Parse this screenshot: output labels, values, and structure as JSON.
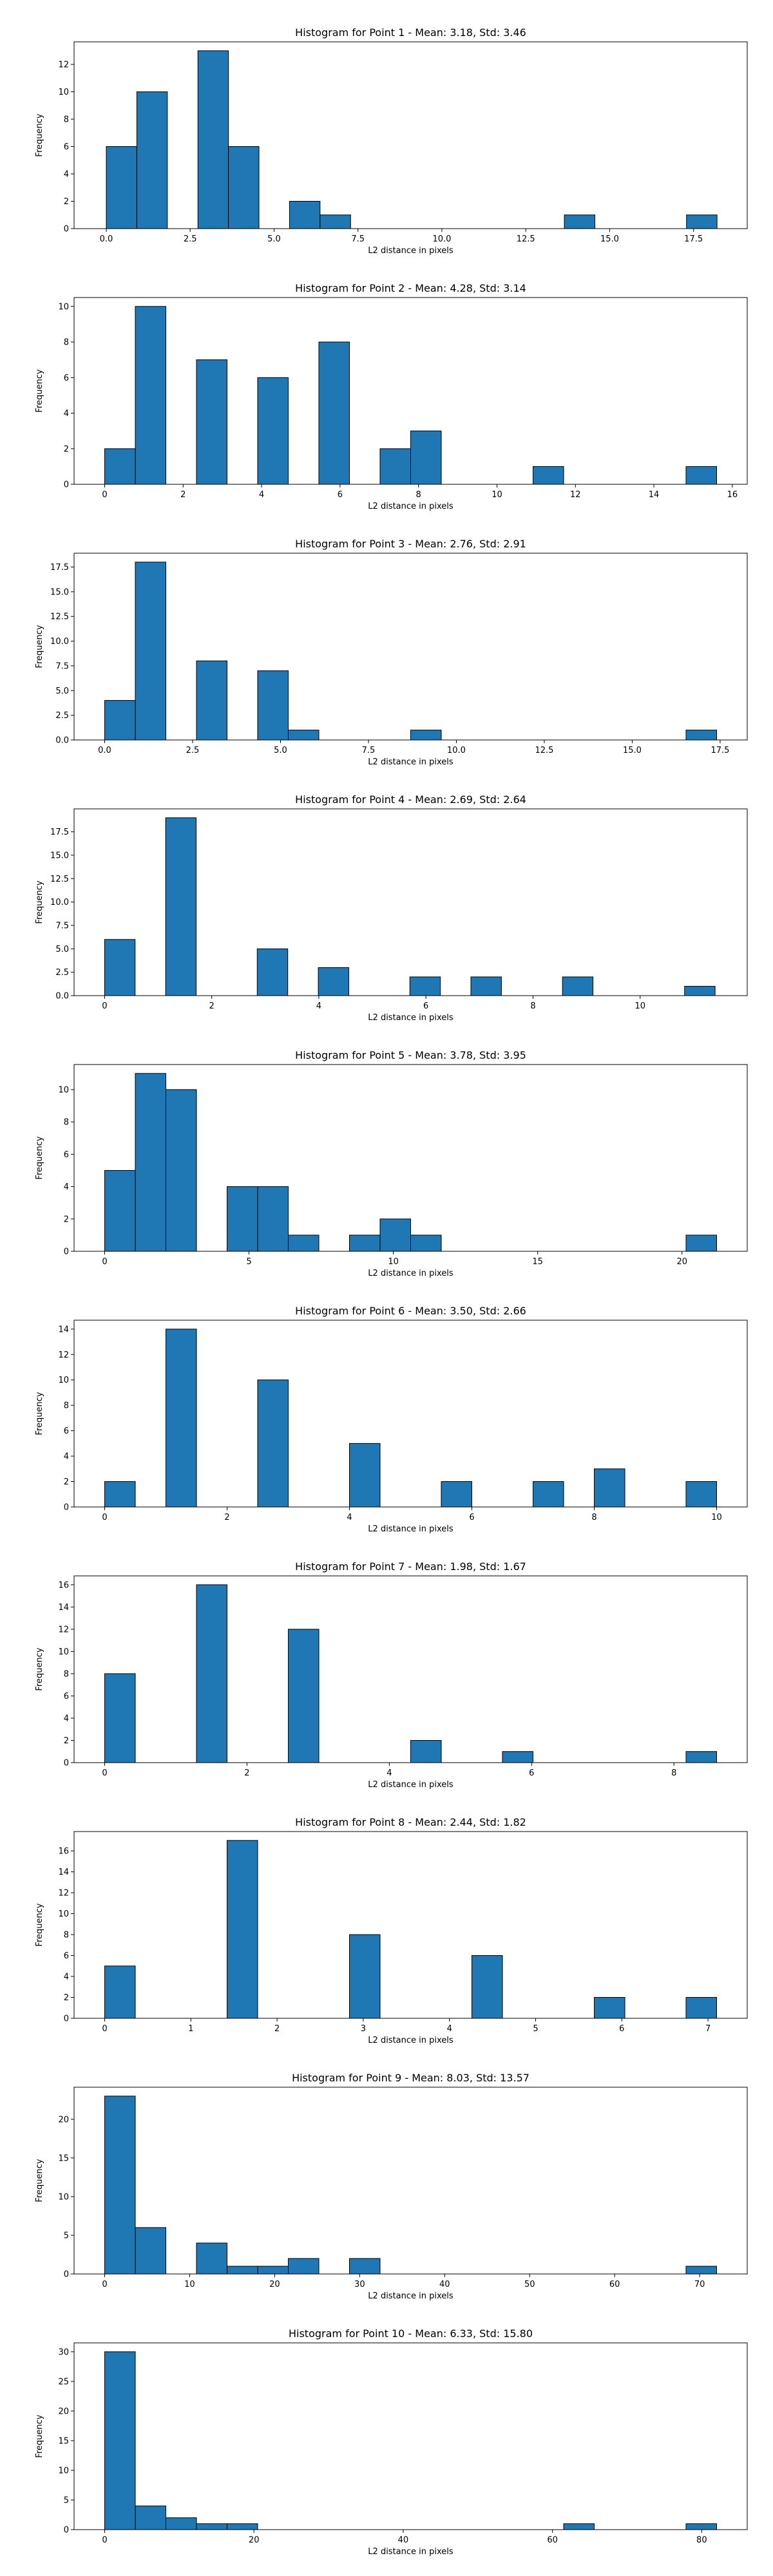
{
  "figure": {
    "background": "#ffffff"
  },
  "style": {
    "bar_color": "#1f77b4",
    "edge_color": "#000000"
  },
  "chart_data": [
    {
      "type": "bar",
      "title": "Histogram for Point 1 - Mean: 3.18, Std: 3.46",
      "xlabel": "L2 distance in pixels",
      "ylabel": "Frequency",
      "xlim": [
        -0.96,
        19.1
      ],
      "ylim": [
        0,
        13.65
      ],
      "xticks": [
        0,
        2.5,
        5,
        7.5,
        10,
        12.5,
        15,
        17.5
      ],
      "xtick_labels": [
        "0.0",
        "2.5",
        "5.0",
        "7.5",
        "10.0",
        "12.5",
        "15.0",
        "17.5"
      ],
      "yticks": [
        0,
        2,
        4,
        6,
        8,
        10,
        12
      ],
      "ytick_labels": [
        "0",
        "2",
        "4",
        "6",
        "8",
        "10",
        "12"
      ],
      "bin_edges": [
        0,
        0.91,
        1.82,
        2.73,
        3.64,
        4.55,
        5.46,
        6.37,
        7.28,
        8.19,
        9.1,
        10.01,
        10.92,
        11.83,
        12.74,
        13.65,
        14.56,
        15.47,
        16.38,
        17.29,
        18.2
      ],
      "counts": [
        6,
        10,
        0,
        13,
        6,
        0,
        2,
        1,
        0,
        0,
        0,
        0,
        0,
        0,
        0,
        1,
        0,
        0,
        0,
        1
      ]
    },
    {
      "type": "bar",
      "title": "Histogram for Point 2 - Mean: 4.28, Std: 3.14",
      "xlabel": "L2 distance in pixels",
      "ylabel": "Frequency",
      "xlim": [
        -0.78,
        16.38
      ],
      "ylim": [
        0,
        10.5
      ],
      "xticks": [
        0,
        2,
        4,
        6,
        8,
        10,
        12,
        14,
        16
      ],
      "xtick_labels": [
        "0",
        "2",
        "4",
        "6",
        "8",
        "10",
        "12",
        "14",
        "16"
      ],
      "yticks": [
        0,
        2,
        4,
        6,
        8,
        10
      ],
      "ytick_labels": [
        "0",
        "2",
        "4",
        "6",
        "8",
        "10"
      ],
      "bin_edges": [
        0,
        0.78,
        1.56,
        2.34,
        3.12,
        3.9,
        4.68,
        5.46,
        6.24,
        7.02,
        7.8,
        8.58,
        9.36,
        10.14,
        10.92,
        11.7,
        12.48,
        13.26,
        14.04,
        14.82,
        15.6
      ],
      "counts": [
        2,
        10,
        0,
        7,
        0,
        6,
        0,
        8,
        0,
        2,
        3,
        0,
        0,
        0,
        1,
        0,
        0,
        0,
        0,
        1
      ]
    },
    {
      "type": "bar",
      "title": "Histogram for Point 3 - Mean: 2.76, Std: 2.91",
      "xlabel": "L2 distance in pixels",
      "ylabel": "Frequency",
      "xlim": [
        -0.87,
        18.27
      ],
      "ylim": [
        0,
        18.9
      ],
      "xticks": [
        0,
        2.5,
        5,
        7.5,
        10,
        12.5,
        15,
        17.5
      ],
      "xtick_labels": [
        "0.0",
        "2.5",
        "5.0",
        "7.5",
        "10.0",
        "12.5",
        "15.0",
        "17.5"
      ],
      "yticks": [
        0,
        2.5,
        5,
        7.5,
        10,
        12.5,
        15,
        17.5
      ],
      "ytick_labels": [
        "0.0",
        "2.5",
        "5.0",
        "7.5",
        "10.0",
        "12.5",
        "15.0",
        "17.5"
      ],
      "bin_edges": [
        0,
        0.87,
        1.74,
        2.61,
        3.48,
        4.35,
        5.22,
        6.09,
        6.96,
        7.83,
        8.7,
        9.57,
        10.44,
        11.31,
        12.18,
        13.05,
        13.92,
        14.79,
        15.66,
        16.53,
        17.4
      ],
      "counts": [
        4,
        18,
        0,
        8,
        0,
        7,
        1,
        0,
        0,
        0,
        1,
        0,
        0,
        0,
        0,
        0,
        0,
        0,
        0,
        1
      ]
    },
    {
      "type": "bar",
      "title": "Histogram for Point 4 - Mean: 2.69, Std: 2.64",
      "xlabel": "L2 distance in pixels",
      "ylabel": "Frequency",
      "xlim": [
        -0.57,
        12.0
      ],
      "ylim": [
        0,
        19.95
      ],
      "xticks": [
        0,
        2,
        4,
        6,
        8,
        10
      ],
      "xtick_labels": [
        "0",
        "2",
        "4",
        "6",
        "8",
        "10"
      ],
      "yticks": [
        0,
        2.5,
        5,
        7.5,
        10,
        12.5,
        15,
        17.5
      ],
      "ytick_labels": [
        "0.0",
        "2.5",
        "5.0",
        "7.5",
        "10.0",
        "12.5",
        "15.0",
        "17.5"
      ],
      "bin_edges": [
        0,
        0.57,
        1.14,
        1.71,
        2.28,
        2.85,
        3.42,
        3.99,
        4.56,
        5.13,
        5.7,
        6.27,
        6.84,
        7.41,
        7.98,
        8.55,
        9.12,
        9.69,
        10.26,
        10.83,
        11.4
      ],
      "counts": [
        6,
        0,
        19,
        0,
        0,
        5,
        0,
        3,
        0,
        0,
        2,
        0,
        2,
        0,
        0,
        2,
        0,
        0,
        0,
        1
      ]
    },
    {
      "type": "bar",
      "title": "Histogram for Point 5 - Mean: 3.78, Std: 3.95",
      "xlabel": "L2 distance in pixels",
      "ylabel": "Frequency",
      "xlim": [
        -1.06,
        22.26
      ],
      "ylim": [
        0,
        11.55
      ],
      "xticks": [
        0,
        5,
        10,
        15,
        20
      ],
      "xtick_labels": [
        "0",
        "5",
        "10",
        "15",
        "20"
      ],
      "yticks": [
        0,
        2,
        4,
        6,
        8,
        10
      ],
      "ytick_labels": [
        "0",
        "2",
        "4",
        "6",
        "8",
        "10"
      ],
      "bin_edges": [
        0,
        1.06,
        2.12,
        3.18,
        4.24,
        5.3,
        6.36,
        7.42,
        8.48,
        9.54,
        10.6,
        11.66,
        12.72,
        13.78,
        14.84,
        15.9,
        16.96,
        18.02,
        19.08,
        20.14,
        21.2
      ],
      "counts": [
        5,
        11,
        10,
        0,
        4,
        4,
        1,
        0,
        1,
        2,
        1,
        0,
        0,
        0,
        0,
        0,
        0,
        0,
        0,
        1
      ]
    },
    {
      "type": "bar",
      "title": "Histogram for Point 6 - Mean: 3.50, Std: 2.66",
      "xlabel": "L2 distance in pixels",
      "ylabel": "Frequency",
      "xlim": [
        -0.5,
        10.5
      ],
      "ylim": [
        0,
        14.7
      ],
      "xticks": [
        0,
        2,
        4,
        6,
        8,
        10
      ],
      "xtick_labels": [
        "0",
        "2",
        "4",
        "6",
        "8",
        "10"
      ],
      "yticks": [
        0,
        2,
        4,
        6,
        8,
        10,
        12,
        14
      ],
      "ytick_labels": [
        "0",
        "2",
        "4",
        "6",
        "8",
        "10",
        "12",
        "14"
      ],
      "bin_edges": [
        0,
        0.5,
        1,
        1.5,
        2,
        2.5,
        3,
        3.5,
        4,
        4.5,
        5,
        5.5,
        6,
        6.5,
        7,
        7.5,
        8,
        8.5,
        9,
        9.5,
        10
      ],
      "counts": [
        2,
        0,
        14,
        0,
        0,
        10,
        0,
        0,
        5,
        0,
        0,
        2,
        0,
        0,
        2,
        0,
        3,
        0,
        0,
        2
      ]
    },
    {
      "type": "bar",
      "title": "Histogram for Point 7 - Mean: 1.98, Std: 1.67",
      "xlabel": "L2 distance in pixels",
      "ylabel": "Frequency",
      "xlim": [
        -0.43,
        9.03
      ],
      "ylim": [
        0,
        16.8
      ],
      "xticks": [
        0,
        2,
        4,
        6,
        8
      ],
      "xtick_labels": [
        "0",
        "2",
        "4",
        "6",
        "8"
      ],
      "yticks": [
        0,
        2,
        4,
        6,
        8,
        10,
        12,
        14,
        16
      ],
      "ytick_labels": [
        "0",
        "2",
        "4",
        "6",
        "8",
        "10",
        "12",
        "14",
        "16"
      ],
      "bin_edges": [
        0,
        0.43,
        0.86,
        1.29,
        1.72,
        2.15,
        2.58,
        3.01,
        3.44,
        3.87,
        4.3,
        4.73,
        5.16,
        5.59,
        6.02,
        6.45,
        6.88,
        7.31,
        7.74,
        8.17,
        8.6
      ],
      "counts": [
        8,
        0,
        0,
        16,
        0,
        0,
        12,
        0,
        0,
        0,
        2,
        0,
        0,
        1,
        0,
        0,
        0,
        0,
        0,
        1
      ]
    },
    {
      "type": "bar",
      "title": "Histogram for Point 8 - Mean: 2.44, Std: 1.82",
      "xlabel": "L2 distance in pixels",
      "ylabel": "Frequency",
      "xlim": [
        -0.355,
        7.455
      ],
      "ylim": [
        0,
        17.85
      ],
      "xticks": [
        0,
        1,
        2,
        3,
        4,
        5,
        6,
        7
      ],
      "xtick_labels": [
        "0",
        "1",
        "2",
        "3",
        "4",
        "5",
        "6",
        "7"
      ],
      "yticks": [
        0,
        2,
        4,
        6,
        8,
        10,
        12,
        14,
        16
      ],
      "ytick_labels": [
        "0",
        "2",
        "4",
        "6",
        "8",
        "10",
        "12",
        "14",
        "16"
      ],
      "bin_edges": [
        0,
        0.355,
        0.71,
        1.065,
        1.42,
        1.775,
        2.13,
        2.485,
        2.84,
        3.195,
        3.55,
        3.905,
        4.26,
        4.615,
        4.97,
        5.325,
        5.68,
        6.035,
        6.39,
        6.745,
        7.1
      ],
      "counts": [
        5,
        0,
        0,
        0,
        17,
        0,
        0,
        0,
        8,
        0,
        0,
        0,
        6,
        0,
        0,
        0,
        2,
        0,
        0,
        2
      ]
    },
    {
      "type": "bar",
      "title": "Histogram for Point 9 - Mean: 8.03, Std: 13.57",
      "xlabel": "L2 distance in pixels",
      "ylabel": "Frequency",
      "xlim": [
        -3.6,
        75.6
      ],
      "ylim": [
        0,
        24.15
      ],
      "xticks": [
        0,
        10,
        20,
        30,
        40,
        50,
        60,
        70
      ],
      "xtick_labels": [
        "0",
        "10",
        "20",
        "30",
        "40",
        "50",
        "60",
        "70"
      ],
      "yticks": [
        0,
        5,
        10,
        15,
        20
      ],
      "ytick_labels": [
        "0",
        "5",
        "10",
        "15",
        "20"
      ],
      "bin_edges": [
        0,
        3.6,
        7.2,
        10.8,
        14.4,
        18,
        21.6,
        25.2,
        28.8,
        32.4,
        36,
        39.6,
        43.2,
        46.8,
        50.4,
        54,
        57.6,
        61.2,
        64.8,
        68.4,
        72
      ],
      "counts": [
        23,
        6,
        0,
        4,
        1,
        1,
        2,
        0,
        2,
        0,
        0,
        0,
        0,
        0,
        0,
        0,
        0,
        0,
        0,
        1
      ]
    },
    {
      "type": "bar",
      "title": "Histogram for Point 10 - Mean: 6.33, Std: 15.80",
      "xlabel": "L2 distance in pixels",
      "ylabel": "Frequency",
      "xlim": [
        -4.1,
        86.1
      ],
      "ylim": [
        0,
        31.5
      ],
      "xticks": [
        0,
        20,
        40,
        60,
        80
      ],
      "xtick_labels": [
        "0",
        "20",
        "40",
        "60",
        "80"
      ],
      "yticks": [
        0,
        5,
        10,
        15,
        20,
        25,
        30
      ],
      "ytick_labels": [
        "0",
        "5",
        "10",
        "15",
        "20",
        "25",
        "30"
      ],
      "bin_edges": [
        0,
        4.1,
        8.2,
        12.3,
        16.4,
        20.5,
        24.6,
        28.7,
        32.8,
        36.9,
        41,
        45.1,
        49.2,
        53.3,
        57.4,
        61.5,
        65.6,
        69.7,
        73.8,
        77.9,
        82
      ],
      "counts": [
        30,
        4,
        2,
        1,
        1,
        0,
        0,
        0,
        0,
        0,
        0,
        0,
        0,
        0,
        0,
        1,
        0,
        0,
        0,
        1
      ]
    }
  ]
}
